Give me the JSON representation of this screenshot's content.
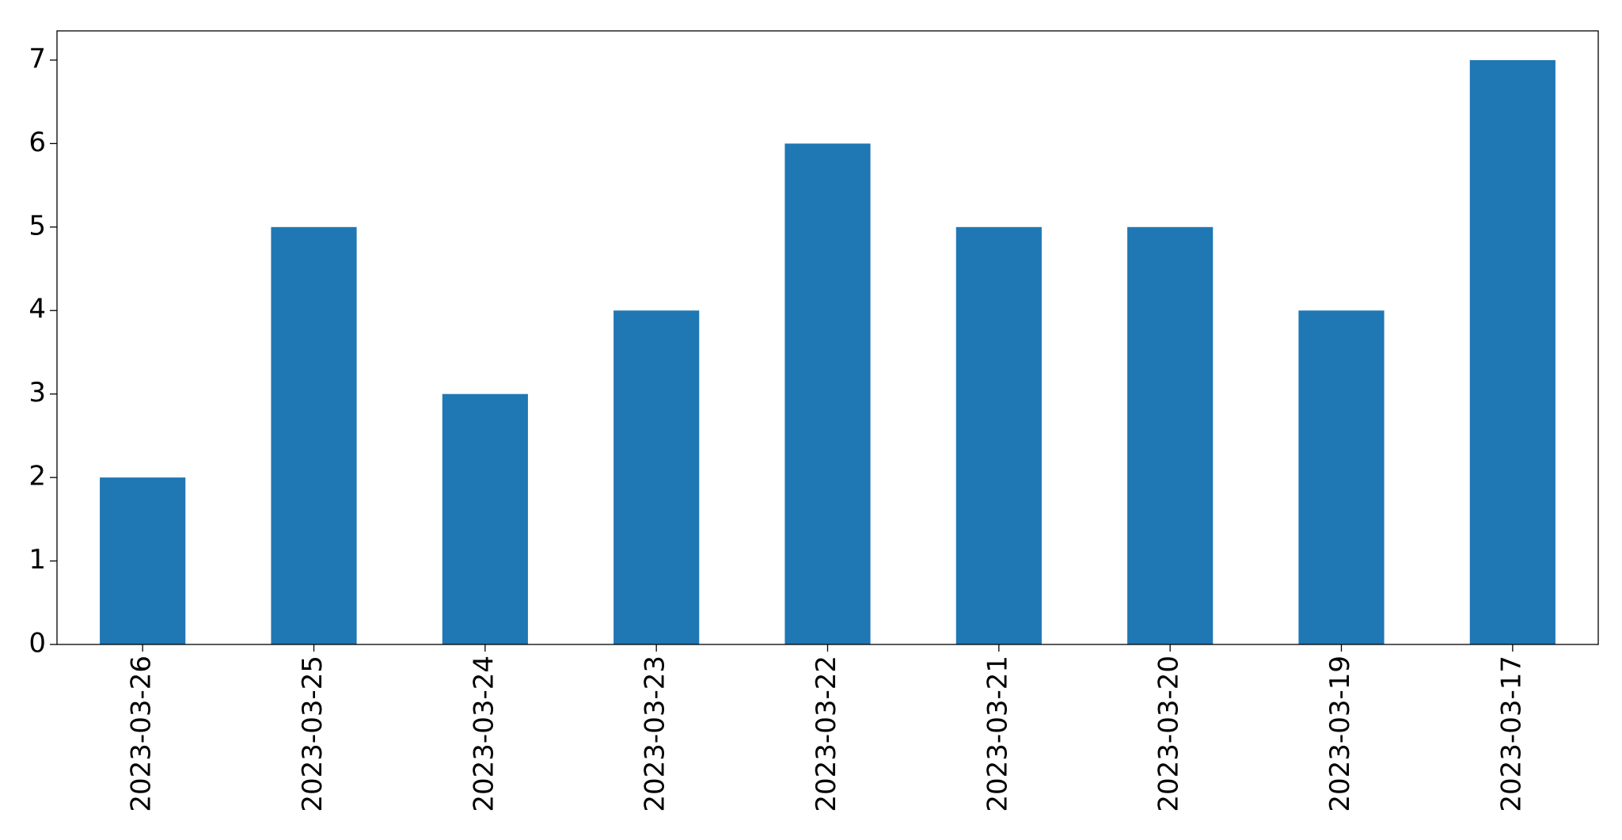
{
  "chart_data": {
    "type": "bar",
    "categories": [
      "2023-03-26",
      "2023-03-25",
      "2023-03-24",
      "2023-03-23",
      "2023-03-22",
      "2023-03-21",
      "2023-03-20",
      "2023-03-19",
      "2023-03-17"
    ],
    "values": [
      2,
      5,
      3,
      4,
      6,
      5,
      5,
      4,
      7
    ],
    "color": "#1f77b4",
    "ylim": [
      0,
      7.35
    ],
    "yticks": [
      0,
      1,
      2,
      3,
      4,
      5,
      6,
      7
    ],
    "grid": false
  }
}
